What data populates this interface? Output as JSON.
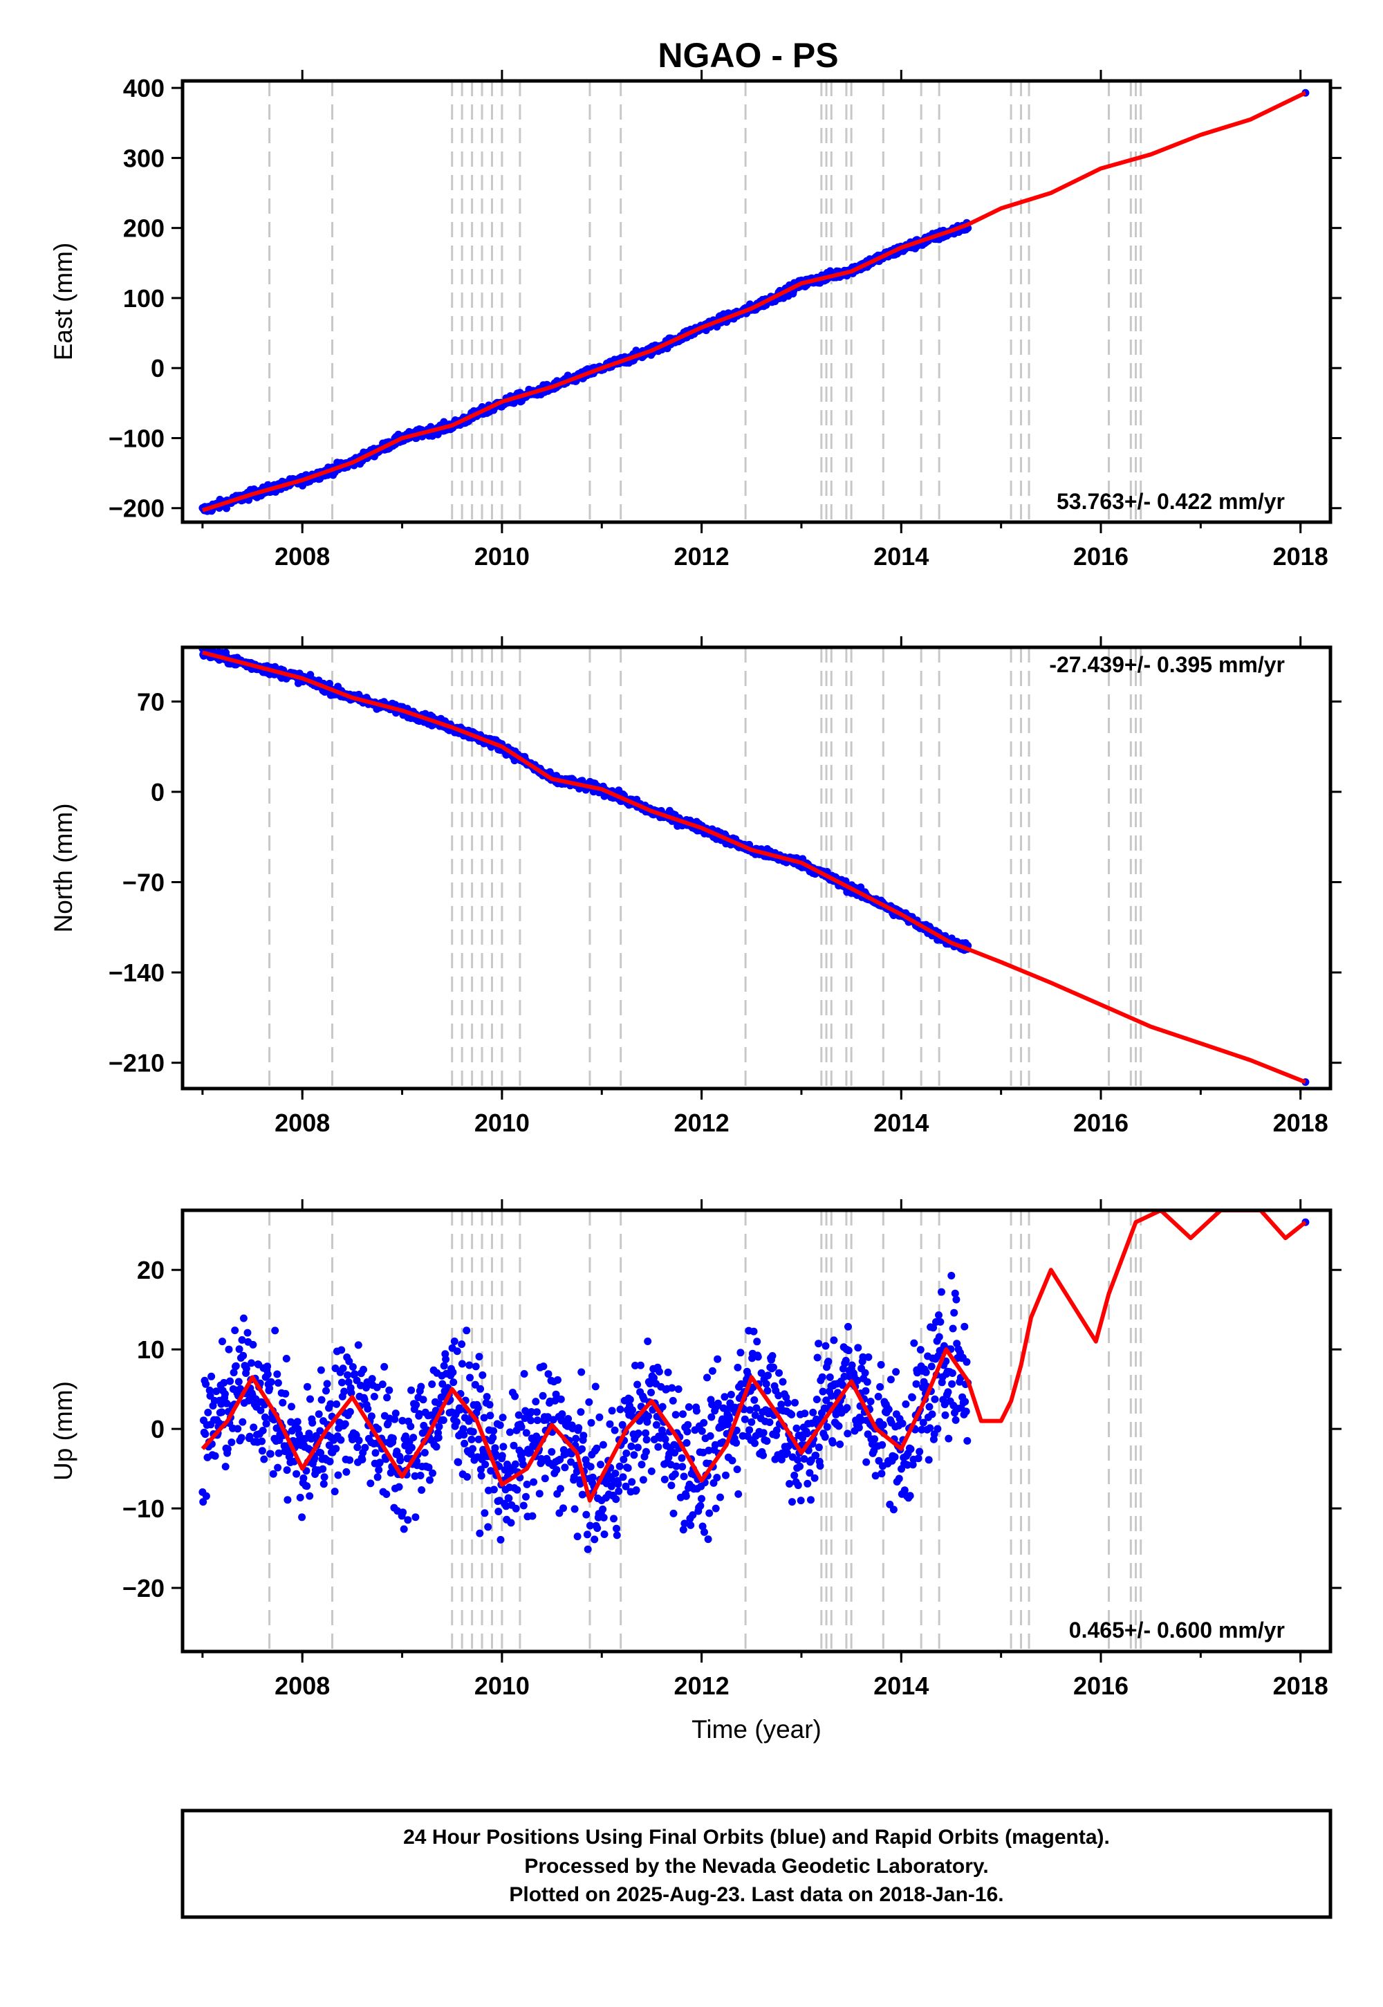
{
  "title": "NGAO - PS",
  "footer": {
    "line1": "24 Hour Positions Using Final Orbits (blue) and Rapid Orbits (magenta).",
    "line2": "Processed by the Nevada Geodetic Laboratory.",
    "line3": "Plotted on 2025-Aug-23. Last data on 2018-Jan-16."
  },
  "colors": {
    "observations": "#0000ff",
    "model": "#ff0000",
    "event_lines": "#c8c8c8",
    "frame": "#000000"
  },
  "chart_data": [
    {
      "type": "scatter",
      "panel": "east",
      "ylabel": "East (mm)",
      "xlabel": "",
      "xlim": [
        2006.8,
        2018.3
      ],
      "ylim": [
        -220,
        410
      ],
      "xticks": [
        2008,
        2010,
        2012,
        2014,
        2016,
        2018
      ],
      "yticks": [
        -200,
        -100,
        0,
        100,
        200,
        300,
        400
      ],
      "ytick_labels": [
        "−200",
        "−100",
        "0",
        "100",
        "200",
        "300",
        "400"
      ],
      "rate_text": "53.763+/- 0.422 mm/yr",
      "event_lines_x": [
        2007.67,
        2008.3,
        2009.5,
        2009.6,
        2009.7,
        2009.8,
        2009.9,
        2010.0,
        2010.18,
        2010.88,
        2011.19,
        2012.44,
        2013.2,
        2013.25,
        2013.3,
        2013.45,
        2013.5,
        2013.82,
        2014.2,
        2014.38,
        2015.1,
        2015.2,
        2015.28,
        2016.08,
        2016.3,
        2016.35,
        2016.4
      ],
      "series": [
        {
          "kind": "points",
          "x": [
            2007.0,
            2007.5,
            2008.0,
            2008.5,
            2009.0,
            2009.5,
            2010.0,
            2010.5,
            2011.0,
            2011.5,
            2012.0,
            2012.5,
            2013.0,
            2013.5,
            2014.0,
            2014.5,
            2014.67,
            2018.05
          ],
          "values": [
            -203,
            -180,
            -160,
            -135,
            -100,
            -82,
            -50,
            -27,
            0,
            25,
            58,
            85,
            120,
            140,
            170,
            195,
            203,
            393
          ]
        },
        {
          "kind": "line",
          "x": [
            2007.0,
            2007.5,
            2008.0,
            2008.5,
            2009.0,
            2009.5,
            2010.0,
            2010.5,
            2011.0,
            2011.5,
            2012.0,
            2012.5,
            2013.0,
            2013.5,
            2014.0,
            2014.5,
            2014.67,
            2015.0,
            2015.5,
            2016.0,
            2016.5,
            2017.0,
            2017.5,
            2018.05
          ],
          "values": [
            -203,
            -180,
            -160,
            -135,
            -100,
            -82,
            -48,
            -27,
            0,
            25,
            58,
            85,
            121,
            138,
            172,
            196,
            205,
            228,
            250,
            285,
            305,
            333,
            355,
            393
          ]
        }
      ]
    },
    {
      "type": "scatter",
      "panel": "north",
      "ylabel": "North (mm)",
      "xlabel": "",
      "xlim": [
        2006.8,
        2018.3
      ],
      "ylim": [
        -230,
        112
      ],
      "xticks": [
        2008,
        2010,
        2012,
        2014,
        2016,
        2018
      ],
      "yticks": [
        -210,
        -140,
        -70,
        0,
        70
      ],
      "ytick_labels": [
        "−210",
        "−140",
        "−70",
        "0",
        "70"
      ],
      "rate_text": "-27.439+/- 0.395 mm/yr",
      "event_lines_x": [
        2007.67,
        2008.3,
        2009.5,
        2009.6,
        2009.7,
        2009.8,
        2009.9,
        2010.0,
        2010.18,
        2010.88,
        2011.19,
        2012.44,
        2013.2,
        2013.25,
        2013.3,
        2013.45,
        2013.5,
        2013.82,
        2014.2,
        2014.38,
        2015.1,
        2015.2,
        2015.28,
        2016.08,
        2016.3,
        2016.35,
        2016.4
      ],
      "series": [
        {
          "kind": "points",
          "x": [
            2007.0,
            2007.5,
            2008.0,
            2008.5,
            2009.0,
            2009.5,
            2010.0,
            2010.5,
            2011.0,
            2011.5,
            2012.0,
            2012.5,
            2013.0,
            2013.5,
            2014.0,
            2014.5,
            2014.67,
            2018.05
          ],
          "values": [
            108,
            98,
            88,
            73,
            63,
            50,
            35,
            10,
            2,
            -15,
            -28,
            -45,
            -55,
            -75,
            -95,
            -117,
            -120,
            -225
          ]
        },
        {
          "kind": "line",
          "x": [
            2007.0,
            2007.5,
            2008.0,
            2008.5,
            2009.0,
            2009.5,
            2010.0,
            2010.5,
            2011.0,
            2011.5,
            2012.0,
            2012.5,
            2013.0,
            2013.5,
            2014.0,
            2014.5,
            2014.67,
            2015.0,
            2015.5,
            2016.0,
            2016.5,
            2017.0,
            2017.5,
            2018.05
          ],
          "values": [
            108,
            98,
            88,
            73,
            63,
            50,
            35,
            10,
            2,
            -15,
            -28,
            -45,
            -55,
            -75,
            -95,
            -117,
            -122,
            -132,
            -148,
            -165,
            -182,
            -195,
            -208,
            -225
          ]
        }
      ]
    },
    {
      "type": "scatter",
      "panel": "up",
      "ylabel": "Up (mm)",
      "xlabel": "Time (year)",
      "xlim": [
        2006.8,
        2018.3
      ],
      "ylim": [
        -28,
        27.5
      ],
      "xticks": [
        2008,
        2010,
        2012,
        2014,
        2016,
        2018
      ],
      "yticks": [
        -20,
        -10,
        0,
        10,
        20
      ],
      "ytick_labels": [
        "−20",
        "−10",
        "0",
        "10",
        "20"
      ],
      "rate_text": "0.465+/- 0.600 mm/yr",
      "event_lines_x": [
        2007.67,
        2008.3,
        2009.5,
        2009.6,
        2009.7,
        2009.8,
        2009.9,
        2010.0,
        2010.18,
        2010.88,
        2011.19,
        2012.44,
        2013.2,
        2013.25,
        2013.3,
        2013.45,
        2013.5,
        2013.82,
        2014.2,
        2014.38,
        2015.1,
        2015.2,
        2015.28,
        2016.08,
        2016.3,
        2016.35,
        2016.4
      ],
      "series": [
        {
          "kind": "points",
          "x": [
            2007.0,
            2007.25,
            2007.5,
            2007.75,
            2008.0,
            2008.25,
            2008.5,
            2008.75,
            2009.0,
            2009.25,
            2009.5,
            2009.75,
            2010.0,
            2010.25,
            2010.5,
            2010.75,
            2011.0,
            2011.25,
            2011.5,
            2011.75,
            2012.0,
            2012.25,
            2012.5,
            2012.75,
            2013.0,
            2013.25,
            2013.5,
            2013.75,
            2014.0,
            2014.25,
            2014.5,
            2014.67,
            2018.05
          ],
          "values": [
            -2,
            3,
            6,
            1,
            -4,
            0,
            4,
            0,
            -5,
            0,
            5,
            0,
            -6,
            -3,
            0,
            -4,
            -8,
            -2,
            3,
            -2,
            -6,
            0,
            6,
            2,
            -3,
            3,
            6,
            1,
            -3,
            4,
            10,
            5,
            26
          ]
        },
        {
          "kind": "line",
          "x": [
            2007.0,
            2007.25,
            2007.5,
            2007.75,
            2008.0,
            2008.25,
            2008.5,
            2008.75,
            2009.0,
            2009.25,
            2009.5,
            2009.75,
            2010.0,
            2010.25,
            2010.5,
            2010.75,
            2010.88,
            2011.0,
            2011.25,
            2011.5,
            2011.75,
            2012.0,
            2012.25,
            2012.5,
            2012.75,
            2013.0,
            2013.25,
            2013.5,
            2013.75,
            2014.0,
            2014.25,
            2014.45,
            2014.67,
            2014.8,
            2015.0,
            2015.1,
            2015.2,
            2015.3,
            2015.5,
            2015.75,
            2015.95,
            2016.08,
            2016.35,
            2016.6,
            2016.9,
            2017.2,
            2017.6,
            2017.85,
            2018.05
          ],
          "values": [
            -2.5,
            1,
            6.5,
            1.5,
            -5,
            0,
            4,
            -1,
            -6,
            -1,
            5,
            1,
            -7,
            -5,
            0.5,
            -3,
            -9,
            -6,
            0,
            3.5,
            -1,
            -6.5,
            -2,
            6.5,
            2,
            -3,
            1.5,
            6,
            0,
            -2.5,
            4,
            10,
            6,
            1,
            1,
            3.5,
            8,
            14,
            20,
            15,
            11,
            17,
            26,
            27.5,
            24,
            27.5,
            27.5,
            24,
            26
          ]
        }
      ]
    }
  ]
}
